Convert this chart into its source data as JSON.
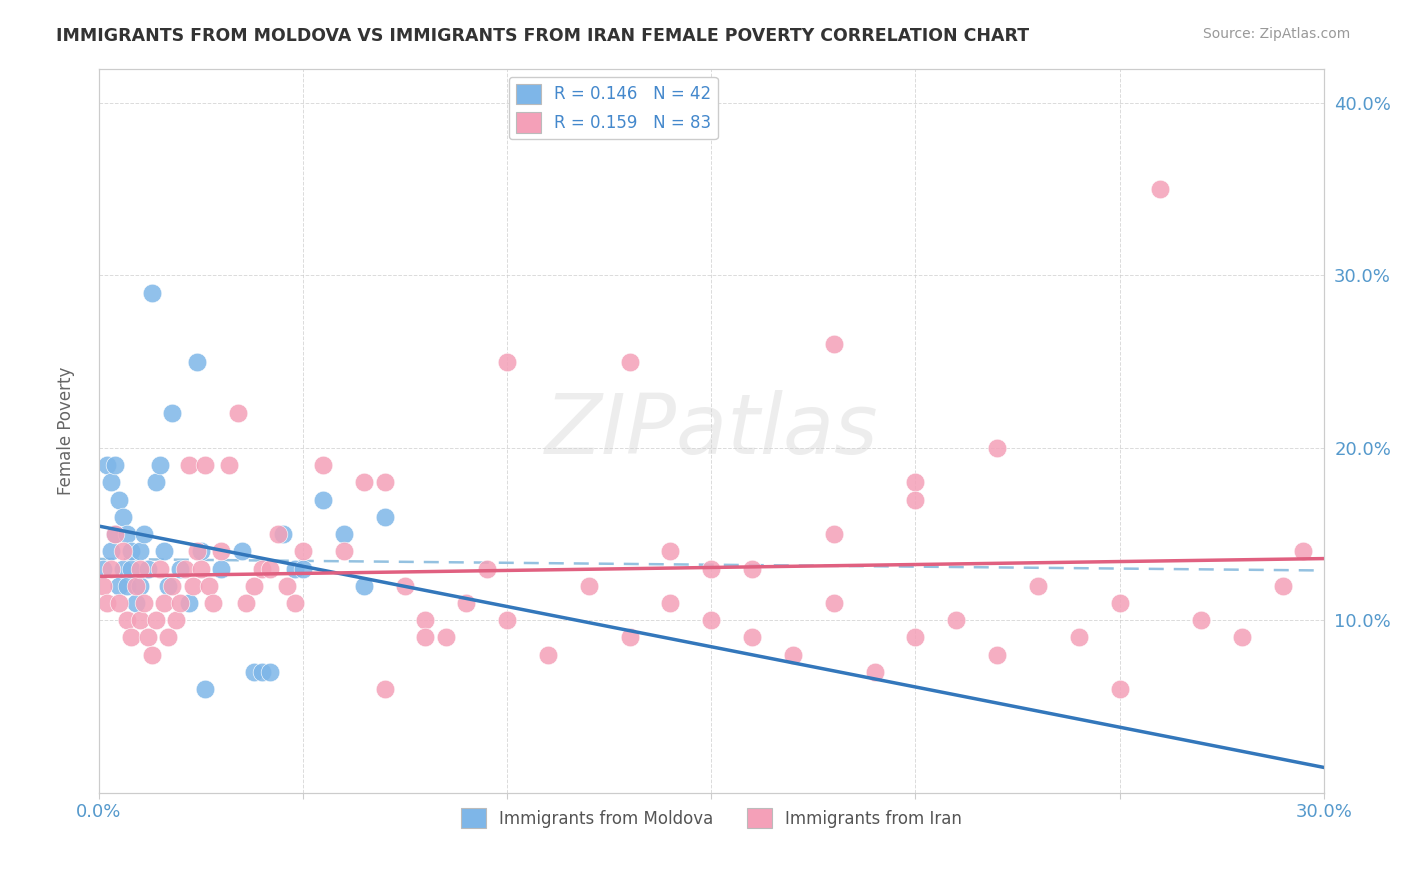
{
  "title": "IMMIGRANTS FROM MOLDOVA VS IMMIGRANTS FROM IRAN FEMALE POVERTY CORRELATION CHART",
  "source": "Source: ZipAtlas.com",
  "ylabel": "Female Poverty",
  "y_ticks": [
    0.1,
    0.2,
    0.3,
    0.4
  ],
  "y_tick_labels": [
    "10.0%",
    "20.0%",
    "30.0%",
    "40.0%"
  ],
  "x_ticks": [
    0.0,
    0.05,
    0.1,
    0.15,
    0.2,
    0.25,
    0.3
  ],
  "legend_moldova": "R = 0.146   N = 42",
  "legend_iran": "R = 0.159   N = 83",
  "moldova_color": "#7EB6E8",
  "iran_color": "#F4A0B8",
  "moldova_line_color": "#3377BB",
  "iran_line_color": "#E06080",
  "dash_line_color": "#88BBDD",
  "watermark_text": "ZIPatlas",
  "moldova_points_x": [
    0.001,
    0.002,
    0.003,
    0.003,
    0.004,
    0.004,
    0.005,
    0.005,
    0.006,
    0.006,
    0.007,
    0.007,
    0.008,
    0.008,
    0.009,
    0.01,
    0.01,
    0.011,
    0.012,
    0.013,
    0.014,
    0.015,
    0.016,
    0.017,
    0.018,
    0.02,
    0.022,
    0.024,
    0.025,
    0.026,
    0.03,
    0.035,
    0.038,
    0.04,
    0.042,
    0.045,
    0.048,
    0.05,
    0.055,
    0.06,
    0.065,
    0.07
  ],
  "moldova_points_y": [
    0.13,
    0.19,
    0.14,
    0.18,
    0.15,
    0.19,
    0.12,
    0.17,
    0.13,
    0.16,
    0.12,
    0.15,
    0.13,
    0.14,
    0.11,
    0.12,
    0.14,
    0.15,
    0.13,
    0.29,
    0.18,
    0.19,
    0.14,
    0.12,
    0.22,
    0.13,
    0.11,
    0.25,
    0.14,
    0.06,
    0.13,
    0.14,
    0.07,
    0.07,
    0.07,
    0.15,
    0.13,
    0.13,
    0.17,
    0.15,
    0.12,
    0.16
  ],
  "iran_points_x": [
    0.001,
    0.002,
    0.003,
    0.004,
    0.005,
    0.006,
    0.007,
    0.008,
    0.009,
    0.01,
    0.01,
    0.011,
    0.012,
    0.013,
    0.014,
    0.015,
    0.016,
    0.017,
    0.018,
    0.019,
    0.02,
    0.021,
    0.022,
    0.023,
    0.024,
    0.025,
    0.026,
    0.027,
    0.028,
    0.03,
    0.032,
    0.034,
    0.036,
    0.038,
    0.04,
    0.042,
    0.044,
    0.046,
    0.048,
    0.05,
    0.055,
    0.06,
    0.065,
    0.07,
    0.075,
    0.08,
    0.085,
    0.09,
    0.095,
    0.1,
    0.11,
    0.12,
    0.13,
    0.14,
    0.15,
    0.16,
    0.17,
    0.18,
    0.19,
    0.2,
    0.21,
    0.22,
    0.23,
    0.24,
    0.25,
    0.26,
    0.27,
    0.28,
    0.29,
    0.295,
    0.18,
    0.2,
    0.22,
    0.13,
    0.14,
    0.16,
    0.18,
    0.2,
    0.1,
    0.15,
    0.25,
    0.07,
    0.08
  ],
  "iran_points_y": [
    0.12,
    0.11,
    0.13,
    0.15,
    0.11,
    0.14,
    0.1,
    0.09,
    0.12,
    0.1,
    0.13,
    0.11,
    0.09,
    0.08,
    0.1,
    0.13,
    0.11,
    0.09,
    0.12,
    0.1,
    0.11,
    0.13,
    0.19,
    0.12,
    0.14,
    0.13,
    0.19,
    0.12,
    0.11,
    0.14,
    0.19,
    0.22,
    0.11,
    0.12,
    0.13,
    0.13,
    0.15,
    0.12,
    0.11,
    0.14,
    0.19,
    0.14,
    0.18,
    0.06,
    0.12,
    0.1,
    0.09,
    0.11,
    0.13,
    0.1,
    0.08,
    0.12,
    0.09,
    0.11,
    0.1,
    0.09,
    0.08,
    0.11,
    0.07,
    0.09,
    0.1,
    0.08,
    0.12,
    0.09,
    0.11,
    0.35,
    0.1,
    0.09,
    0.12,
    0.14,
    0.26,
    0.18,
    0.2,
    0.25,
    0.14,
    0.13,
    0.15,
    0.17,
    0.25,
    0.13,
    0.06,
    0.18,
    0.09
  ]
}
